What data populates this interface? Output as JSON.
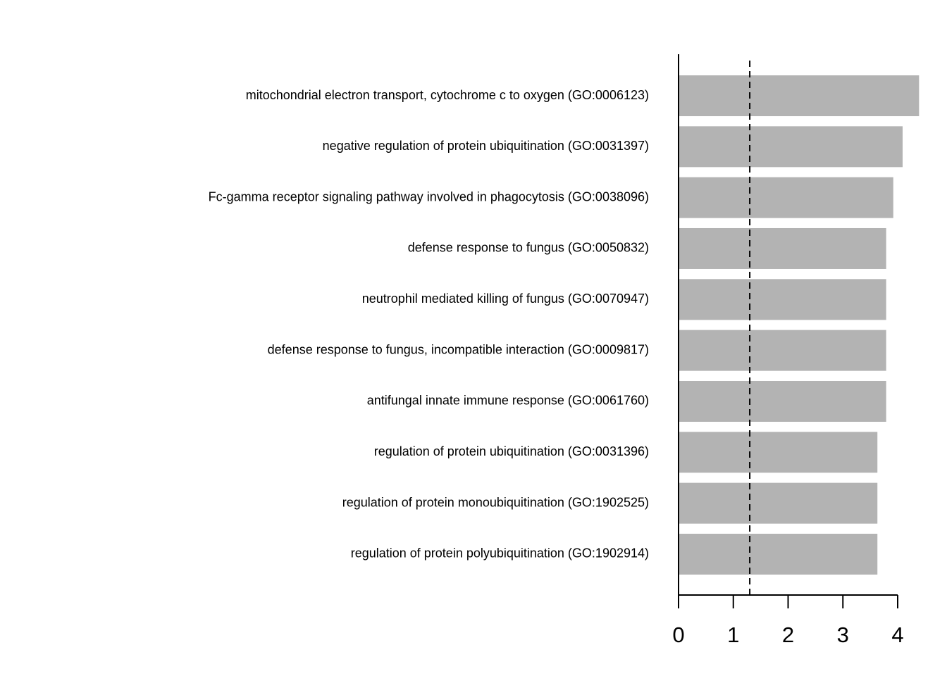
{
  "chart_data": {
    "type": "bar",
    "orientation": "horizontal",
    "categories": [
      "mitochondrial electron transport, cytochrome c to oxygen (GO:0006123)",
      "negative regulation of protein ubiquitination (GO:0031397)",
      "Fc-gamma receptor signaling pathway involved in phagocytosis (GO:0038096)",
      "defense response to fungus (GO:0050832)",
      "neutrophil mediated killing of fungus (GO:0070947)",
      "defense response to fungus, incompatible interaction (GO:0009817)",
      "antifungal innate immune response (GO:0061760)",
      "regulation of protein ubiquitination (GO:0031396)",
      "regulation of protein monoubiquitination (GO:1902525)",
      "regulation of protein polyubiquitination (GO:1902914)"
    ],
    "values": [
      4.39,
      4.09,
      3.92,
      3.79,
      3.79,
      3.79,
      3.79,
      3.63,
      3.63,
      3.63
    ],
    "color": "#b3b3b3",
    "xlim": [
      0,
      4.4
    ],
    "xticks": [
      0,
      1,
      2,
      3,
      4
    ],
    "reference_line": 1.3
  }
}
